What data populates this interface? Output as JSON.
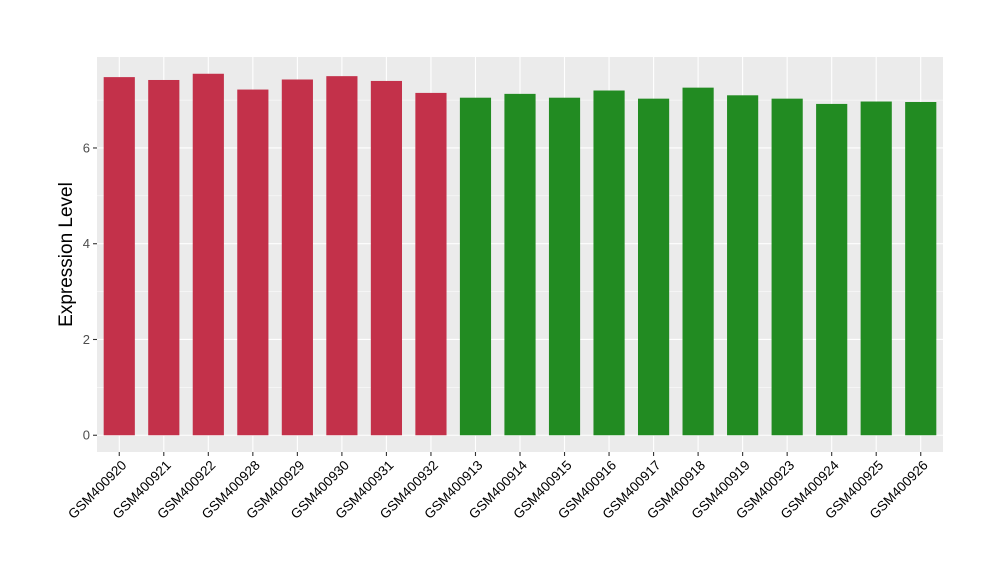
{
  "chart_data": {
    "type": "bar",
    "title": "",
    "xlabel": "",
    "ylabel": "Expression Level",
    "ylim": [
      -0.35,
      7.9
    ],
    "yticks": [
      0,
      2,
      4,
      6
    ],
    "grid": true,
    "legend": "none",
    "categories": [
      "GSM400920",
      "GSM400921",
      "GSM400922",
      "GSM400928",
      "GSM400929",
      "GSM400930",
      "GSM400931",
      "GSM400932",
      "GSM400913",
      "GSM400914",
      "GSM400915",
      "GSM400916",
      "GSM400917",
      "GSM400918",
      "GSM400919",
      "GSM400923",
      "GSM400924",
      "GSM400925",
      "GSM400926"
    ],
    "values": [
      7.48,
      7.42,
      7.55,
      7.22,
      7.43,
      7.5,
      7.4,
      7.15,
      7.05,
      7.13,
      7.05,
      7.2,
      7.03,
      7.26,
      7.1,
      7.03,
      6.92,
      6.97,
      6.96
    ],
    "groups": [
      0,
      0,
      0,
      0,
      0,
      0,
      0,
      0,
      1,
      1,
      1,
      1,
      1,
      1,
      1,
      1,
      1,
      1,
      1
    ],
    "colors": {
      "group_0": "#C3314A",
      "group_1": "#228B22",
      "panel": "#EBEBEB",
      "grid_major": "#FFFFFF",
      "axis_text": "#4D4D4D",
      "title_text": "#000000"
    }
  }
}
